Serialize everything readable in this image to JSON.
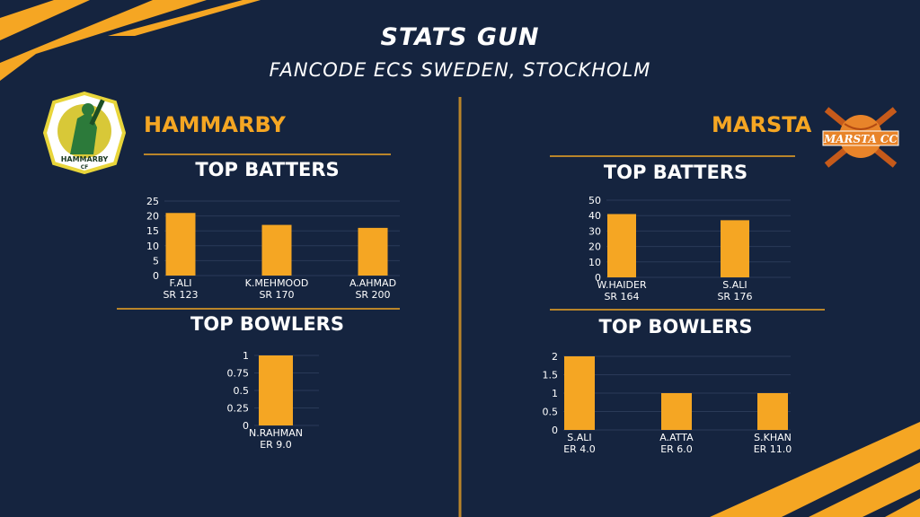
{
  "header": {
    "title": "STATS GUN",
    "subtitle": "FANCODE ECS SWEDEN, STOCKHOLM"
  },
  "colors": {
    "background": "#15243f",
    "accent": "#f5a623",
    "text": "#ffffff"
  },
  "teams": {
    "left": {
      "name": "HAMMARBY",
      "logo_text": "HAMMARBY CF",
      "batters_heading": "TOP BATTERS",
      "bowlers_heading": "TOP BOWLERS"
    },
    "right": {
      "name": "MARSTA",
      "logo_text": "MARSTA CC",
      "batters_heading": "TOP BATTERS",
      "bowlers_heading": "TOP BOWLERS"
    }
  },
  "chart_data": [
    {
      "id": "hammarby-batters",
      "type": "bar",
      "categories": [
        "F.ALI",
        "K.MEHMOOD",
        "A.AHMAD"
      ],
      "sublabels": [
        "SR 123",
        "SR 170",
        "SR 200"
      ],
      "values": [
        21,
        17,
        16
      ],
      "ylim": [
        0,
        25
      ],
      "yticks": [
        "0",
        "5",
        "10",
        "15",
        "20",
        "25"
      ],
      "ytick_values": [
        0,
        5,
        10,
        15,
        20,
        25
      ]
    },
    {
      "id": "hammarby-bowlers",
      "type": "bar",
      "categories": [
        "N.RAHMAN"
      ],
      "sublabels": [
        "ER 9.0"
      ],
      "values": [
        1
      ],
      "ylim": [
        0,
        1
      ],
      "yticks": [
        "0",
        "0.25",
        "0.5",
        "0.75",
        "1"
      ],
      "ytick_values": [
        0,
        0.25,
        0.5,
        0.75,
        1
      ]
    },
    {
      "id": "marsta-batters",
      "type": "bar",
      "categories": [
        "W.HAIDER",
        "S.ALI"
      ],
      "sublabels": [
        "SR 164",
        "SR 176"
      ],
      "values": [
        41,
        37
      ],
      "ylim": [
        0,
        50
      ],
      "yticks": [
        "0",
        "10",
        "20",
        "30",
        "40",
        "50"
      ],
      "ytick_values": [
        0,
        10,
        20,
        30,
        40,
        50
      ]
    },
    {
      "id": "marsta-bowlers",
      "type": "bar",
      "categories": [
        "S.ALI",
        "A.ATTA",
        "S.KHAN"
      ],
      "sublabels": [
        "ER 4.0",
        "ER 6.0",
        "ER 11.0"
      ],
      "values": [
        2,
        1,
        1
      ],
      "ylim": [
        0,
        2
      ],
      "yticks": [
        "0",
        "0.5",
        "1",
        "1.5",
        "2"
      ],
      "ytick_values": [
        0,
        0.5,
        1,
        1.5,
        2
      ]
    }
  ]
}
